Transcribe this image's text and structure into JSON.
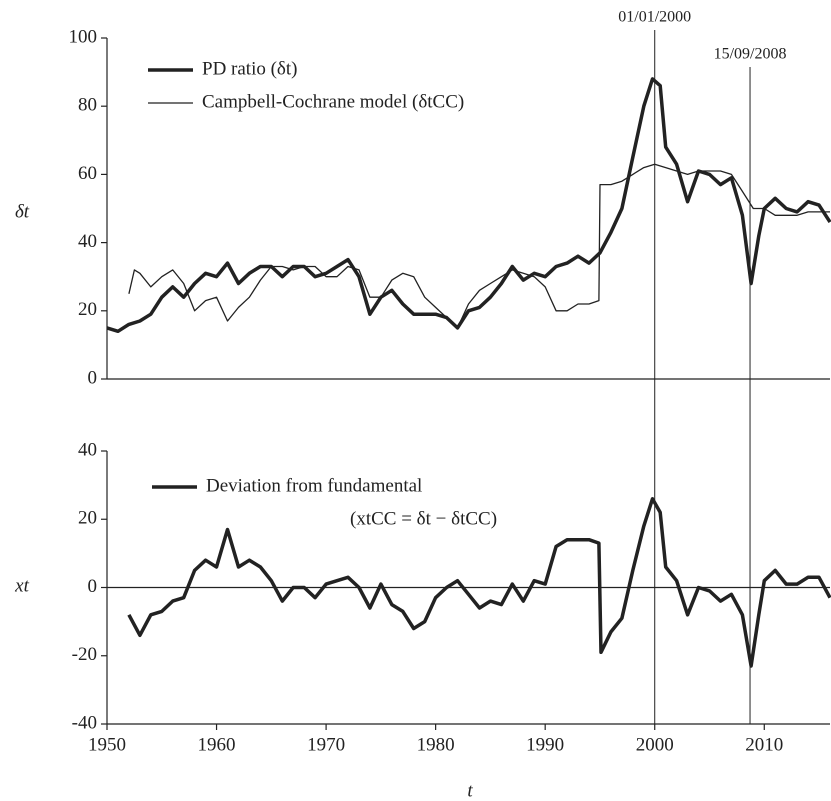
{
  "chart_data": [
    {
      "type": "line",
      "ylabel": "δt",
      "xlim": [
        1950,
        2016
      ],
      "ylim": [
        0,
        100
      ],
      "yticks": [
        0,
        20,
        40,
        60,
        80,
        100
      ],
      "annotations": [
        {
          "x": 2000,
          "label": "01/01/2000"
        },
        {
          "x": 2008.7,
          "label": "15/09/2008"
        }
      ],
      "series": [
        {
          "name": "PD ratio (δt)",
          "color": "#222222",
          "width": 3.5,
          "x": [
            1950,
            1951,
            1952,
            1953,
            1954,
            1955,
            1956,
            1957,
            1958,
            1959,
            1960,
            1961,
            1962,
            1963,
            1964,
            1965,
            1966,
            1967,
            1968,
            1969,
            1970,
            1971,
            1972,
            1973,
            1974,
            1975,
            1976,
            1977,
            1978,
            1979,
            1980,
            1981,
            1982,
            1983,
            1984,
            1985,
            1986,
            1987,
            1988,
            1989,
            1990,
            1991,
            1992,
            1993,
            1994,
            1995,
            1996,
            1997,
            1998,
            1999,
            1999.8,
            2000.5,
            2001,
            2002,
            2003,
            2004,
            2005,
            2006,
            2007,
            2008,
            2008.8,
            2009.5,
            2010,
            2011,
            2012,
            2013,
            2014,
            2015,
            2016
          ],
          "values": [
            15,
            14,
            16,
            17,
            19,
            24,
            27,
            24,
            28,
            31,
            30,
            34,
            28,
            31,
            33,
            33,
            30,
            33,
            33,
            30,
            31,
            33,
            35,
            30,
            19,
            24,
            26,
            22,
            19,
            19,
            19,
            18,
            15,
            20,
            21,
            24,
            28,
            33,
            29,
            31,
            30,
            33,
            34,
            36,
            34,
            37,
            43,
            50,
            65,
            80,
            88,
            86,
            68,
            63,
            52,
            61,
            60,
            57,
            59,
            48,
            28,
            42,
            50,
            53,
            50,
            49,
            52,
            51,
            46
          ]
        },
        {
          "name": "Campbell-Cochrane model (δtCC)",
          "color": "#222222",
          "width": 1.3,
          "x": [
            1952,
            1952.5,
            1953,
            1954,
            1955,
            1956,
            1957,
            1958,
            1959,
            1960,
            1961,
            1962,
            1963,
            1964,
            1965,
            1966,
            1967,
            1968,
            1969,
            1970,
            1971,
            1972,
            1973,
            1974,
            1975,
            1976,
            1977,
            1978,
            1979,
            1980,
            1981,
            1982,
            1983,
            1984,
            1985,
            1986,
            1987,
            1988,
            1989,
            1990,
            1991,
            1992,
            1993,
            1994,
            1994.9,
            1995,
            1996,
            1997,
            1998,
            1999,
            2000,
            2001,
            2002,
            2003,
            2004,
            2005,
            2006,
            2007,
            2008,
            2009,
            2010,
            2011,
            2012,
            2013,
            2014,
            2015,
            2016
          ],
          "values": [
            25,
            32,
            31,
            27,
            30,
            32,
            28,
            20,
            23,
            24,
            17,
            21,
            24,
            29,
            33,
            33,
            32,
            33,
            33,
            30,
            30,
            33,
            32,
            24,
            24,
            29,
            31,
            30,
            24,
            21,
            18,
            15,
            22,
            26,
            28,
            30,
            32,
            31,
            30,
            27,
            20,
            20,
            22,
            22,
            23,
            57,
            57,
            58,
            60,
            62,
            63,
            62,
            61,
            60,
            61,
            61,
            61,
            60,
            55,
            50,
            50,
            48,
            48,
            48,
            49,
            49,
            49
          ]
        }
      ]
    },
    {
      "type": "line",
      "ylabel": "xt",
      "xlabel": "t",
      "xlim": [
        1950,
        2016
      ],
      "ylim": [
        -40,
        40
      ],
      "yticks": [
        -40,
        -20,
        0,
        20,
        40
      ],
      "xticks": [
        1950,
        1960,
        1970,
        1980,
        1990,
        2000,
        2010
      ],
      "formula": "(xtCC = δt − δtCC)",
      "series": [
        {
          "name": "Deviation from fundamental",
          "color": "#222222",
          "width": 3.5,
          "x": [
            1952,
            1953,
            1954,
            1955,
            1956,
            1957,
            1958,
            1959,
            1960,
            1961,
            1962,
            1963,
            1964,
            1965,
            1966,
            1967,
            1968,
            1969,
            1970,
            1971,
            1972,
            1973,
            1974,
            1975,
            1976,
            1977,
            1978,
            1979,
            1980,
            1981,
            1982,
            1983,
            1984,
            1985,
            1986,
            1987,
            1988,
            1989,
            1990,
            1991,
            1992,
            1993,
            1994,
            1994.9,
            1995.1,
            1996,
            1997,
            1998,
            1999,
            1999.8,
            2000.5,
            2001,
            2002,
            2003,
            2004,
            2005,
            2006,
            2007,
            2008,
            2008.8,
            2009.5,
            2010,
            2011,
            2012,
            2013,
            2014,
            2015,
            2016
          ],
          "values": [
            -8,
            -14,
            -8,
            -7,
            -4,
            -3,
            5,
            8,
            6,
            17,
            6,
            8,
            6,
            2,
            -4,
            0,
            0,
            -3,
            1,
            2,
            3,
            0,
            -6,
            1,
            -5,
            -7,
            -12,
            -10,
            -3,
            0,
            2,
            -2,
            -6,
            -4,
            -5,
            1,
            -4,
            2,
            1,
            12,
            14,
            14,
            14,
            13,
            -19,
            -13,
            -9,
            5,
            18,
            26,
            22,
            6,
            2,
            -8,
            0,
            -1,
            -4,
            -2,
            -8,
            -23,
            -8,
            2,
            5,
            1,
            1,
            3,
            3,
            -3
          ]
        }
      ]
    }
  ]
}
